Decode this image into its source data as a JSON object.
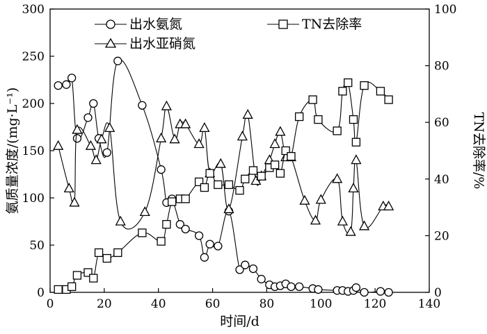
{
  "chart_data": {
    "type": "line",
    "xlabel": "时间/d",
    "ylabel_left": "氨质量浓度/(mg·L⁻¹)",
    "ylabel_right": "TN去除率/%",
    "xlim": [
      0,
      140
    ],
    "ylim_left": [
      0,
      300
    ],
    "ylim_right": [
      0,
      100
    ],
    "xticks": [
      "0",
      "20",
      "40",
      "60",
      "80",
      "100",
      "120",
      "140"
    ],
    "yticks_left": [
      "0",
      "50",
      "100",
      "150",
      "200",
      "250",
      "300"
    ],
    "yticks_right": [
      "0",
      "20",
      "40",
      "60",
      "80",
      "100"
    ],
    "grid": false,
    "legend_position": "top",
    "series": [
      {
        "name": "出水氨氮",
        "marker": "circle",
        "axis": "left",
        "x": [
          3,
          6,
          8,
          10,
          14,
          16,
          18,
          21,
          25,
          34,
          41,
          43,
          45,
          48,
          50,
          55,
          57,
          59,
          62,
          66,
          70,
          72,
          75,
          78,
          81,
          83,
          85,
          87,
          89,
          92,
          97,
          99,
          106,
          108,
          110,
          112,
          113,
          116,
          122,
          125
        ],
        "y": [
          219,
          220,
          227,
          163,
          185,
          200,
          163,
          148,
          245,
          198,
          130,
          95,
          99,
          72,
          67,
          60,
          37,
          51,
          49,
          86,
          24,
          29,
          25,
          14,
          8,
          6,
          7,
          9,
          6,
          6,
          4,
          3,
          2,
          2,
          1,
          2,
          5,
          0,
          1,
          0
        ]
      },
      {
        "name": "出水亚硝氮",
        "marker": "triangle",
        "axis": "left",
        "x": [
          3,
          7,
          9,
          10,
          15,
          17,
          19,
          22,
          26,
          35,
          41,
          43,
          46,
          48,
          50,
          55,
          57,
          59,
          63,
          66,
          71,
          73,
          76,
          78,
          81,
          83,
          85,
          87,
          89,
          94,
          98,
          100,
          106,
          108,
          111,
          112,
          113,
          116,
          123,
          125
        ],
        "y": [
          155,
          110,
          95,
          172,
          155,
          140,
          162,
          174,
          75,
          85,
          163,
          197,
          162,
          178,
          178,
          157,
          174,
          126,
          136,
          88,
          165,
          188,
          118,
          123,
          140,
          157,
          170,
          143,
          143,
          97,
          76,
          98,
          120,
          75,
          64,
          110,
          140,
          70,
          91,
          91
        ]
      },
      {
        "name": "TN去除率",
        "marker": "square",
        "axis": "right",
        "x": [
          3,
          6,
          8,
          10,
          14,
          16,
          18,
          21,
          25,
          34,
          41,
          43,
          45,
          48,
          50,
          55,
          57,
          59,
          62,
          66,
          70,
          72,
          75,
          78,
          81,
          83,
          85,
          87,
          89,
          92,
          97,
          99,
          106,
          108,
          110,
          112,
          113,
          116,
          122,
          125
        ],
        "y": [
          1,
          1,
          2,
          6,
          7,
          5,
          14,
          12,
          14,
          21,
          18,
          24,
          32,
          33,
          33,
          39,
          37,
          42,
          38,
          38,
          36,
          40,
          43,
          41,
          44,
          45,
          42,
          50,
          48,
          62,
          68,
          61,
          57,
          71,
          74,
          61,
          53,
          73,
          71,
          68
        ]
      }
    ]
  }
}
